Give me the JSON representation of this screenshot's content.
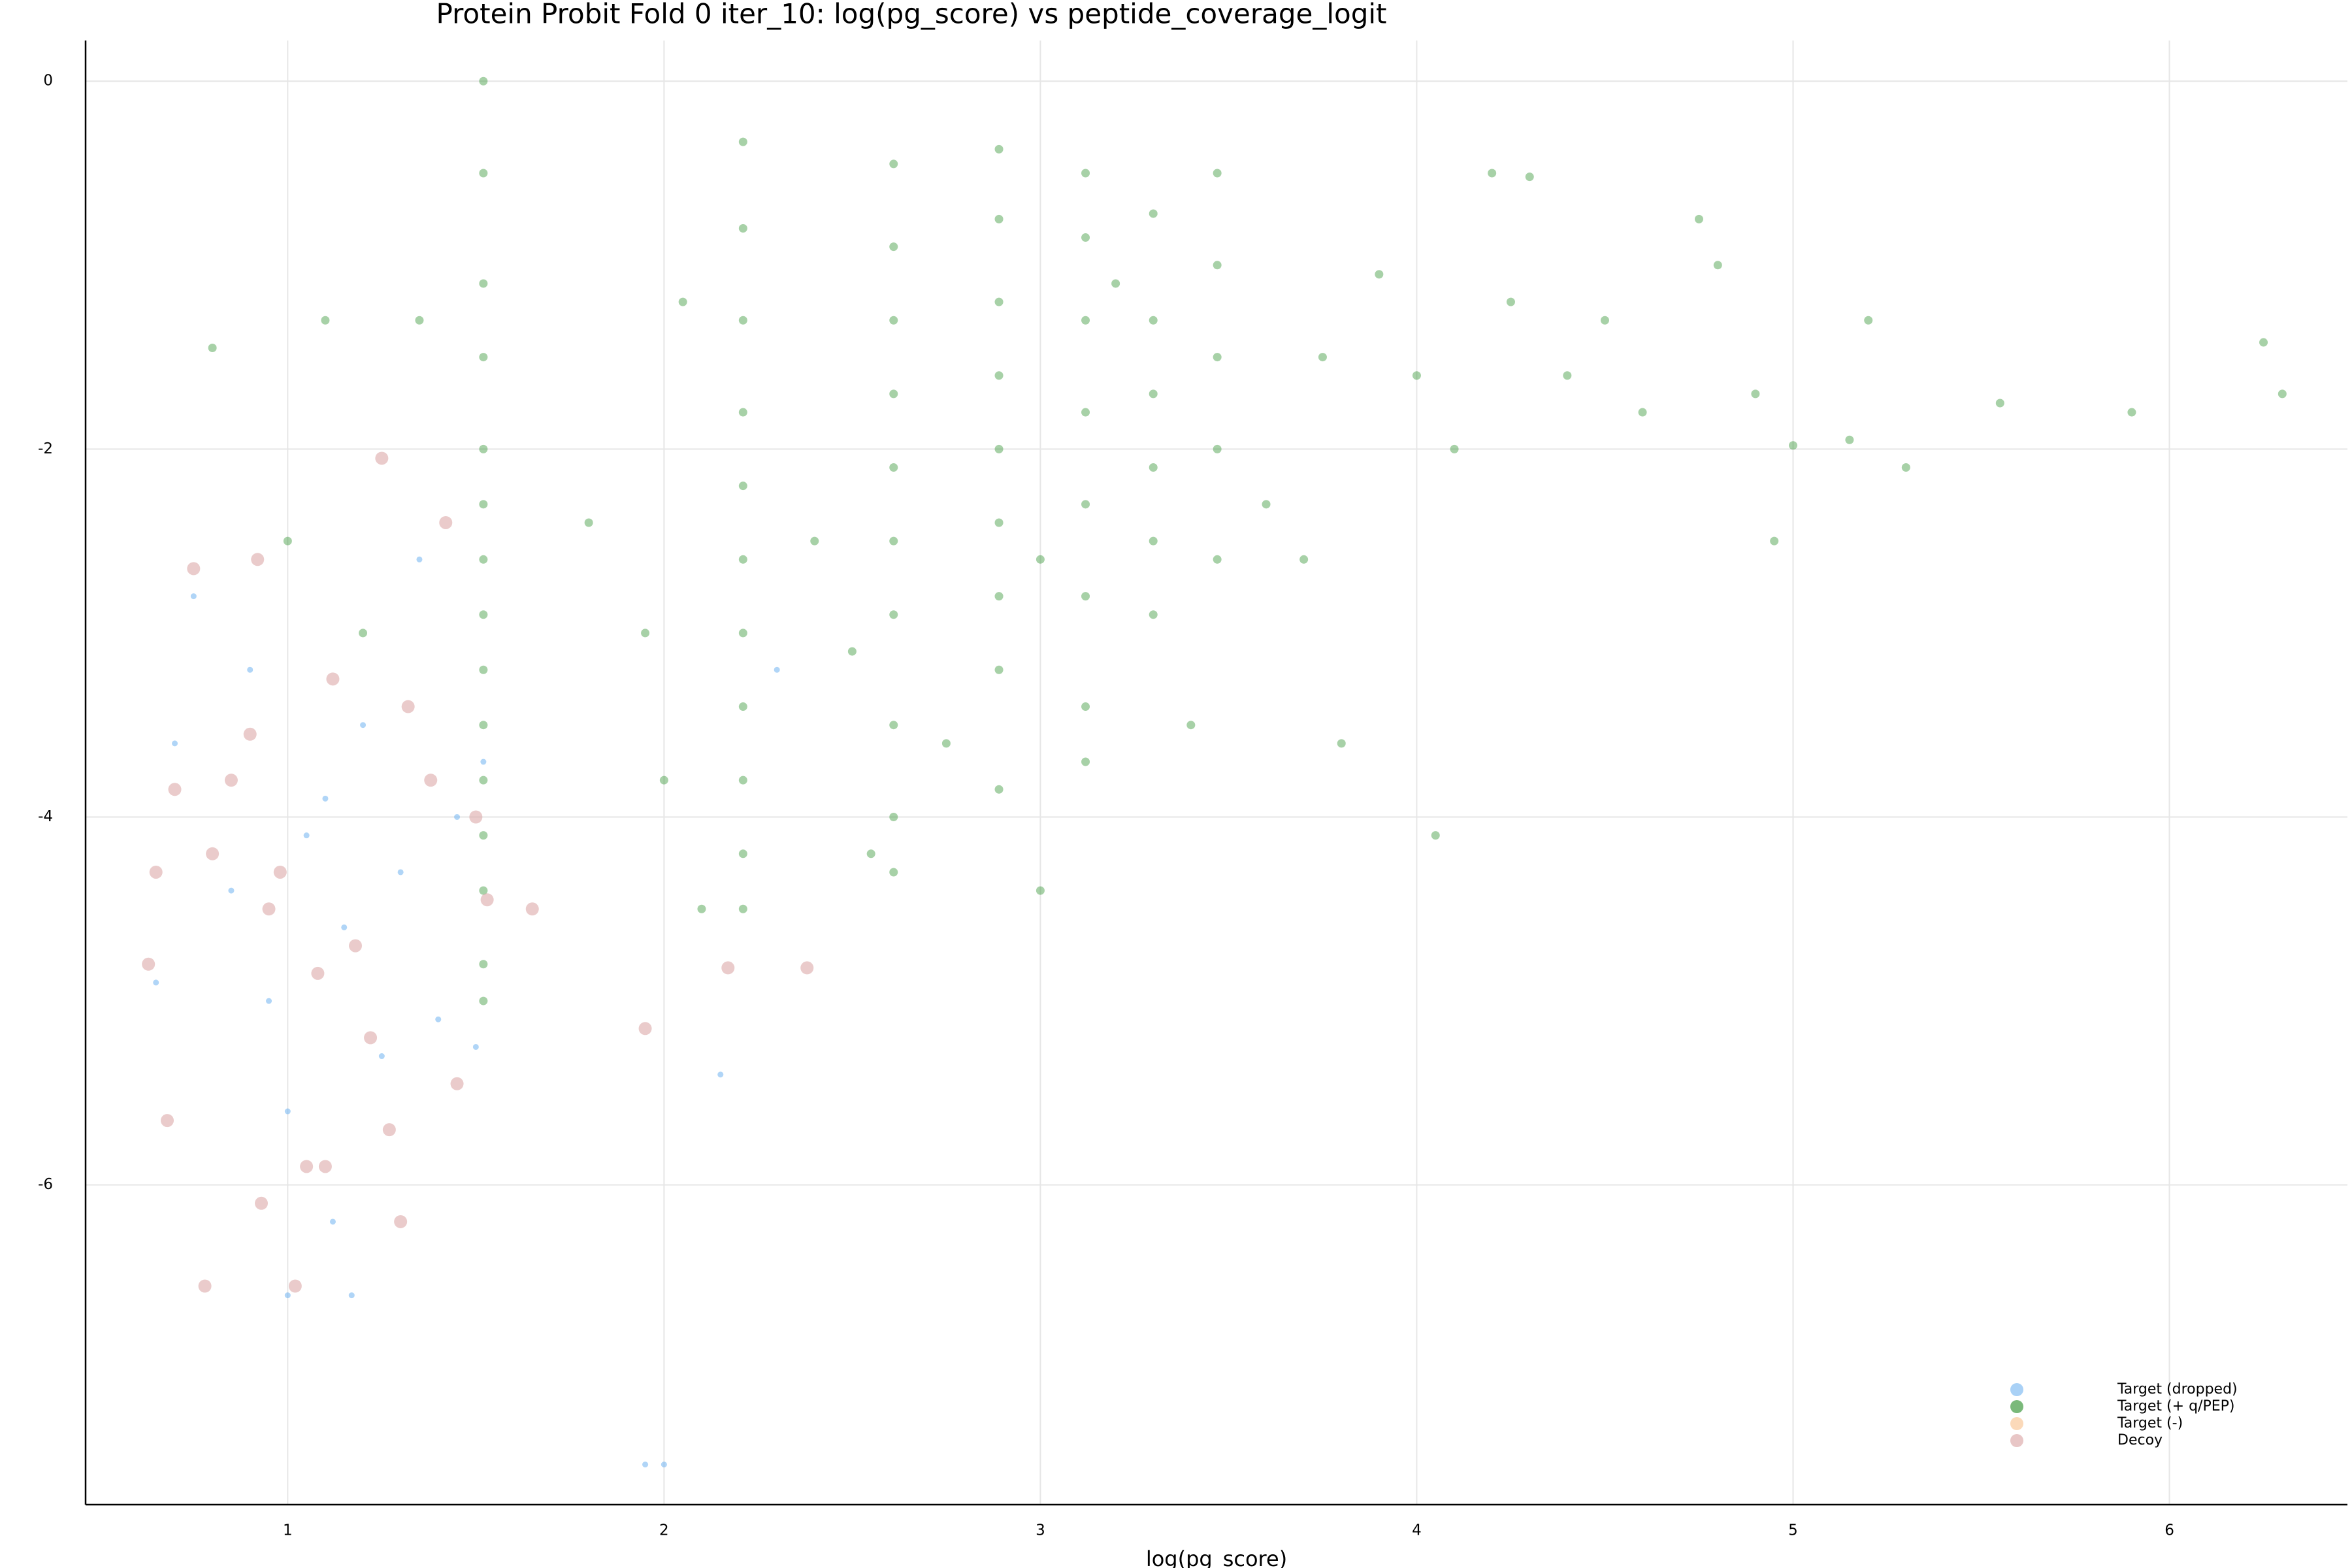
{
  "chart_data": {
    "type": "scatter",
    "title": "Protein Probit Fold 0 iter_10: log(pg_score) vs peptide_coverage_logit",
    "x_label": "log(pg_score)",
    "xlim": [
      0.463,
      6.473
    ],
    "ylim": [
      -7.738,
      0.221
    ],
    "xticks": [
      1,
      2,
      3,
      4,
      5,
      6
    ],
    "yticks": [
      0,
      -2,
      -4,
      -6
    ],
    "grid": true,
    "legend": "bottom-right",
    "series": [
      {
        "name": "Target (dropped)",
        "color": "#6fb3f0",
        "x": [
          0.65,
          0.7,
          0.75,
          0.85,
          0.9,
          0.95,
          1.0,
          1.0,
          1.05,
          1.1,
          1.12,
          1.15,
          1.17,
          1.2,
          1.25,
          1.3,
          1.35,
          1.4,
          1.45,
          1.5,
          1.52,
          1.95,
          2.0,
          2.15,
          2.3
        ],
        "y": [
          -4.9,
          -3.6,
          -2.8,
          -4.4,
          -3.2,
          -5.0,
          -5.6,
          -6.6,
          -4.1,
          -3.9,
          -6.2,
          -4.6,
          -6.6,
          -3.5,
          -5.3,
          -4.3,
          -2.6,
          -5.1,
          -4.0,
          -5.25,
          -3.7,
          -7.52,
          -7.52,
          -5.4,
          -3.2
        ]
      },
      {
        "name": "Target (+ q/PEP)",
        "color": "#228b22",
        "x": [
          1.52,
          1.52,
          1.52,
          1.52,
          1.52,
          1.52,
          1.52,
          1.52,
          1.52,
          1.52,
          1.52,
          1.52,
          1.52,
          1.52,
          1.52,
          2.21,
          2.21,
          2.21,
          2.21,
          2.21,
          2.21,
          2.21,
          2.21,
          2.21,
          2.21,
          2.21,
          2.61,
          2.61,
          2.61,
          2.61,
          2.61,
          2.61,
          2.61,
          2.61,
          2.61,
          2.61,
          2.89,
          2.89,
          2.89,
          2.89,
          2.89,
          2.89,
          2.89,
          2.89,
          2.89,
          3.12,
          3.12,
          3.12,
          3.12,
          3.12,
          3.12,
          3.12,
          3.12,
          3.3,
          3.3,
          3.3,
          3.3,
          3.3,
          3.3,
          3.47,
          3.47,
          3.47,
          3.47,
          3.47,
          1.0,
          1.2,
          1.35,
          1.1,
          0.8,
          1.8,
          1.95,
          2.0,
          2.05,
          2.1,
          2.4,
          2.5,
          2.55,
          2.75,
          3.0,
          3.0,
          3.2,
          3.4,
          3.6,
          3.7,
          3.75,
          3.8,
          3.9,
          4.0,
          4.1,
          4.2,
          4.05,
          4.25,
          4.3,
          4.4,
          4.5,
          4.6,
          4.75,
          4.8,
          4.9,
          4.95,
          5.0,
          5.15,
          5.2,
          5.3,
          5.55,
          5.9,
          6.25,
          6.3
        ],
        "y": [
          0,
          -0.5,
          -1.1,
          -1.5,
          -2.0,
          -2.3,
          -2.6,
          -2.9,
          -3.2,
          -3.5,
          -3.8,
          -4.1,
          -4.4,
          -4.8,
          -5.0,
          -0.33,
          -0.8,
          -1.3,
          -1.8,
          -2.2,
          -2.6,
          -3.0,
          -3.4,
          -3.8,
          -4.2,
          -4.5,
          -0.45,
          -0.9,
          -1.3,
          -1.7,
          -2.1,
          -2.5,
          -2.9,
          -3.5,
          -4.0,
          -4.3,
          -0.37,
          -0.75,
          -1.2,
          -1.6,
          -2.0,
          -2.4,
          -2.8,
          -3.2,
          -3.85,
          -0.5,
          -0.85,
          -1.3,
          -1.8,
          -2.3,
          -2.8,
          -3.4,
          -3.7,
          -0.72,
          -1.3,
          -1.7,
          -2.1,
          -2.5,
          -2.9,
          -0.5,
          -1.0,
          -1.5,
          -2.0,
          -2.6,
          -2.5,
          -3.0,
          -1.3,
          -1.3,
          -1.45,
          -2.4,
          -3.0,
          -3.8,
          -1.2,
          -4.5,
          -2.5,
          -3.1,
          -4.2,
          -3.6,
          -2.6,
          -4.4,
          -1.1,
          -3.5,
          -2.3,
          -2.6,
          -1.5,
          -3.6,
          -1.05,
          -1.6,
          -2.0,
          -0.5,
          -4.1,
          -1.2,
          -0.52,
          -1.6,
          -1.3,
          -1.8,
          -0.75,
          -1.0,
          -1.7,
          -2.5,
          -1.98,
          -1.95,
          -1.3,
          -2.1,
          -1.75,
          -1.8,
          -1.42,
          -1.7
        ]
      },
      {
        "name": "Target (-)",
        "color": "#f9c08a",
        "x": [],
        "y": []
      },
      {
        "name": "Decoy",
        "color": "#d9a0a0",
        "x": [
          0.63,
          0.65,
          0.68,
          0.7,
          0.75,
          0.78,
          0.8,
          0.85,
          0.9,
          0.92,
          0.93,
          0.95,
          0.98,
          1.02,
          1.05,
          1.08,
          1.1,
          1.12,
          1.18,
          1.22,
          1.25,
          1.27,
          1.3,
          1.32,
          1.38,
          1.42,
          1.45,
          1.5,
          1.53,
          1.65,
          1.95,
          2.17,
          2.38
        ],
        "y": [
          -4.8,
          -4.3,
          -5.65,
          -3.85,
          -2.65,
          -6.55,
          -4.2,
          -3.8,
          -3.55,
          -2.6,
          -6.1,
          -4.5,
          -4.3,
          -6.55,
          -5.9,
          -4.85,
          -5.9,
          -3.25,
          -4.7,
          -5.2,
          -2.05,
          -5.7,
          -6.2,
          -3.4,
          -3.8,
          -2.4,
          -5.45,
          -4.0,
          -4.45,
          -4.5,
          -5.15,
          -4.82,
          -4.82
        ]
      }
    ]
  }
}
